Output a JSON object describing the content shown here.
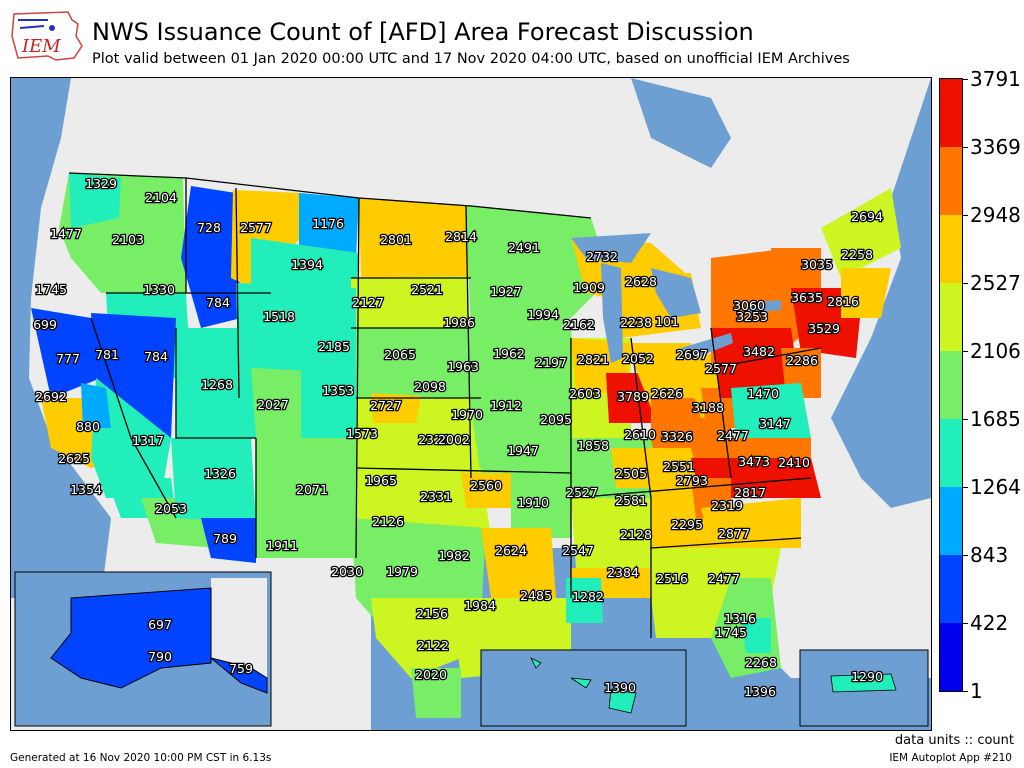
{
  "header": {
    "logo_text": "IEM",
    "title": "NWS Issuance Count of [AFD] Area Forecast Discussion",
    "subtitle": "Plot valid between 01 Jan 2020 00:00 UTC and 17 Nov 2020 04:00 UTC, based on unofficial IEM Archives"
  },
  "colorbar": {
    "labels": [
      "3791",
      "3369",
      "2948",
      "2527",
      "2106",
      "1685",
      "1264",
      "843",
      "422",
      "1"
    ],
    "colors": [
      "#0000ee",
      "#0044ff",
      "#00aaff",
      "#22eebb",
      "#77ee66",
      "#ccf522",
      "#ffcc00",
      "#ff7700",
      "#ee1100"
    ]
  },
  "footer": {
    "units": "data units :: count",
    "generated": "Generated at 16 Nov 2020 10:00 PM CST in 6.13s",
    "app": "IEM Autoplot App #210"
  },
  "map": {
    "water_color": "#6e9fd2",
    "land_bg_color": "#ececec",
    "labels": [
      "1329",
      "2104",
      "728",
      "2577",
      "1176",
      "1477",
      "2103",
      "2801",
      "2814",
      "2491",
      "2732",
      "2694",
      "1394",
      "3035",
      "2258",
      "1745",
      "1330",
      "784",
      "2127",
      "2521",
      "1927",
      "1909",
      "2628",
      "699",
      "1518",
      "1986",
      "1994",
      "2162",
      "2238",
      "101",
      "3060",
      "3635",
      "2816",
      "777",
      "781",
      "784",
      "2185",
      "2065",
      "1962",
      "2197",
      "2821",
      "2052",
      "2697",
      "3253",
      "3529",
      "1963",
      "2098",
      "2603",
      "3789",
      "2626",
      "2577",
      "3482",
      "2286",
      "1268",
      "1353",
      "2027",
      "2727",
      "1970",
      "1912",
      "2095",
      "1858",
      "1470",
      "2692",
      "880",
      "1317",
      "1573",
      "2321",
      "2002",
      "2610",
      "3326",
      "3188",
      "2477",
      "3147",
      "1947",
      "2625",
      "1326",
      "2505",
      "2551",
      "3473",
      "2410",
      "1354",
      "2071",
      "1965",
      "2331",
      "2560",
      "2527",
      "2793",
      "2817",
      "2053",
      "1910",
      "2581",
      "2319",
      "789",
      "1911",
      "2126",
      "2128",
      "2295",
      "2877",
      "2030",
      "1979",
      "1982",
      "2624",
      "2547",
      "2384",
      "2516",
      "2477",
      "2485",
      "1282",
      "2156",
      "1984",
      "1316",
      "1745",
      "697",
      "2122",
      "2268",
      "790",
      "759",
      "2020",
      "1396",
      "1390",
      "1290"
    ]
  }
}
